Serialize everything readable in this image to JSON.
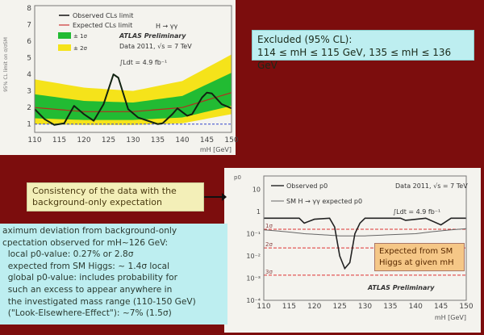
{
  "excluded_box": {
    "line1": "Excluded (95% CL):",
    "line2": "114 ≤ mH ≤ 115 GeV, 135 ≤ mH ≤ 136 GeV"
  },
  "consistency_box": {
    "line1": "Consistency of the data with the",
    "line2": "background-only expectation"
  },
  "deviation_box": {
    "lines": [
      "aximum deviation from background-only",
      "cpectation observed for mH~126 GeV:",
      "  local p0-value: 0.27% or 2.8σ",
      "  expected from SM Higgs: ~ 1.4σ local",
      "  global p0-value: includes probability for",
      "  such an excess to appear anywhere in",
      "  the investigated mass range (110-150 GeV)",
      "  (\"Look-Elsewhere-Effect\"): ~7% (1.5σ)"
    ]
  },
  "expected_box": {
    "line1": "Expected from SM",
    "line2": "Higgs at given mH"
  },
  "colors": {
    "background": "#7c0d0d",
    "band1": "#22bb33",
    "band2": "#f5e31a",
    "sigma_lines": "#dd3333"
  },
  "chart_data": [
    {
      "type": "line",
      "title": "",
      "xlabel": "mH [GeV]",
      "ylabel": "95% CL limit on σ/σSM",
      "xlim": [
        110,
        150
      ],
      "ylim": [
        0.5,
        8
      ],
      "xticks": [
        110,
        115,
        120,
        125,
        130,
        135,
        140,
        145,
        150
      ],
      "yticks": [
        1,
        2,
        3,
        4,
        5,
        6,
        7,
        8
      ],
      "legend": [
        "Observed CLs limit",
        "Expected CLs limit",
        "± 1σ",
        "± 2σ"
      ],
      "annotations": [
        "H → γγ",
        "ATLAS Preliminary",
        "Data 2011, √s = 7 TeV",
        "∫Ldt = 4.9 fb⁻¹"
      ],
      "observed": {
        "x": [
          110,
          112,
          114,
          116,
          118,
          120,
          122,
          124,
          126,
          127,
          129,
          131,
          133,
          135,
          136,
          138,
          139,
          141,
          142,
          144,
          145,
          146,
          148,
          150
        ],
        "y": [
          1.9,
          1.3,
          0.95,
          1.05,
          2.1,
          1.6,
          1.2,
          2.2,
          4.0,
          3.8,
          1.9,
          1.4,
          1.2,
          1.0,
          1.05,
          1.6,
          1.95,
          1.5,
          1.6,
          2.6,
          2.9,
          2.85,
          2.2,
          1.95
        ]
      },
      "expected": {
        "x": [
          110,
          120,
          130,
          140,
          150
        ],
        "y": [
          2.0,
          1.75,
          1.75,
          2.0,
          2.9
        ]
      },
      "band_1sigma": {
        "x": [
          110,
          120,
          130,
          140,
          150
        ],
        "low": [
          1.35,
          1.25,
          1.25,
          1.4,
          2.1
        ],
        "high": [
          2.8,
          2.4,
          2.3,
          2.7,
          4.1
        ]
      },
      "band_2sigma": {
        "x": [
          110,
          120,
          130,
          140,
          150
        ],
        "low": [
          1.0,
          0.95,
          0.95,
          1.05,
          1.6
        ],
        "high": [
          3.7,
          3.2,
          3.0,
          3.6,
          5.2
        ]
      },
      "reference_line": 1
    },
    {
      "type": "line",
      "title": "",
      "xlabel": "mH [GeV]",
      "ylabel": "p0",
      "xlim": [
        110,
        150
      ],
      "ylim": [
        0.0001,
        40
      ],
      "yscale": "log",
      "xticks": [
        110,
        115,
        120,
        125,
        130,
        135,
        140,
        145,
        150
      ],
      "yticks": [
        {
          "v": 10,
          "label": "10"
        },
        {
          "v": 1,
          "label": "1"
        },
        {
          "v": 0.1,
          "label": "10⁻¹"
        },
        {
          "v": 0.01,
          "label": "10⁻²"
        },
        {
          "v": 0.001,
          "label": "10⁻³"
        },
        {
          "v": 0.0001,
          "label": "10⁻⁴"
        }
      ],
      "legend": [
        "Observed p0",
        "SM H → γγ expected p0"
      ],
      "annotations": [
        "Data 2011, √s = 7 TeV",
        "∫Ldt = 4.9 fb⁻¹",
        "ATLAS Preliminary"
      ],
      "sigma_lines": [
        {
          "label": "1σ",
          "p": 0.159
        },
        {
          "label": "2σ",
          "p": 0.0228
        },
        {
          "label": "3σ",
          "p": 0.00135
        }
      ],
      "observed": {
        "x": [
          110,
          117,
          118,
          120,
          123,
          124,
          125,
          126,
          127,
          128,
          129,
          130,
          137,
          138,
          142,
          145,
          147,
          150
        ],
        "y": [
          0.5,
          0.5,
          0.3,
          0.45,
          0.5,
          0.2,
          0.01,
          0.0027,
          0.005,
          0.1,
          0.3,
          0.5,
          0.5,
          0.4,
          0.5,
          0.25,
          0.5,
          0.5
        ]
      },
      "expected": {
        "x": [
          110,
          118,
          125,
          130,
          140,
          150
        ],
        "y": [
          0.15,
          0.1,
          0.08,
          0.08,
          0.1,
          0.17
        ]
      }
    }
  ]
}
